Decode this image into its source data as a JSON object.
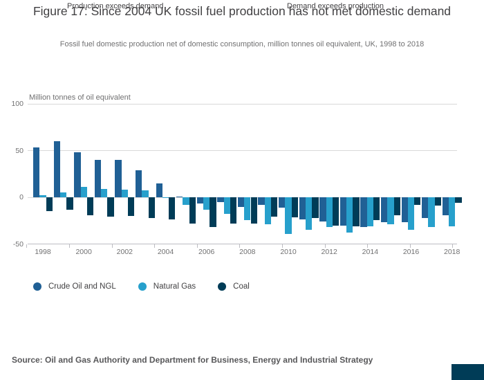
{
  "header": {
    "title": "Figure 17: Since 2004 UK fossil fuel production has not met domestic demand",
    "subtitle": "Fossil fuel domestic production net of domestic consumption, million tonnes oil equivalent, UK, 1998 to 2018"
  },
  "annotations": {
    "left": "Production exceeds demand",
    "right": "Demand exceeds production"
  },
  "footer": {
    "source": "Source: Oil and Gas Authority and Department for Business, Energy and Industrial Strategy"
  },
  "colors": {
    "crude_oil": "#206095",
    "natural_gas": "#27A0CC",
    "coal": "#003C57",
    "gridline": "#d9d9d9",
    "axis_text": "#707071",
    "title_text": "#414042",
    "corner_block": "#003C57"
  },
  "chart_data": {
    "type": "bar",
    "title": "Figure 17: Since 2004 UK fossil fuel production has not met domestic demand",
    "subtitle": "Fossil fuel domestic production net of domestic consumption, million tonnes oil equivalent, UK, 1998 to 2018",
    "ylabel": "Million tonnes of oil equivalent",
    "xlabel": "",
    "ylim": [
      -50,
      100
    ],
    "yticks": [
      100,
      50,
      0,
      -50
    ],
    "grid": "horizontal",
    "legend_position": "bottom",
    "categories": [
      1998,
      1999,
      2000,
      2001,
      2002,
      2003,
      2004,
      2005,
      2006,
      2007,
      2008,
      2009,
      2010,
      2011,
      2012,
      2013,
      2014,
      2015,
      2016,
      2017,
      2018
    ],
    "x_tick_labels": [
      "1998",
      "2000",
      "2002",
      "2004",
      "2006",
      "2008",
      "2010",
      "2012",
      "2014",
      "2016",
      "2018"
    ],
    "series": [
      {
        "name": "Crude Oil and NGL",
        "color": "#206095",
        "values": [
          53,
          60,
          48,
          40,
          40,
          29,
          15,
          1,
          -6.5,
          -5,
          -10,
          -8,
          -11,
          -23.5,
          -26,
          -30,
          -32,
          -26.5,
          -26.5,
          -22,
          -19
        ]
      },
      {
        "name": "Natural Gas",
        "color": "#27A0CC",
        "values": [
          2,
          5,
          11,
          9,
          8,
          7.5,
          -1,
          -8.5,
          -13.5,
          -18,
          -24.5,
          -29,
          -39,
          -35,
          -32,
          -38,
          -31,
          -29,
          -35,
          -32,
          -31
        ]
      },
      {
        "name": "Coal",
        "color": "#003C57",
        "values": [
          -15,
          -13,
          -19.5,
          -21,
          -20,
          -22.5,
          -23.5,
          -28.5,
          -32,
          -28.5,
          -28,
          -20.5,
          -21.5,
          -22,
          -30,
          -31,
          -24.5,
          -19.5,
          -8,
          -9,
          -6
        ]
      }
    ],
    "annotations": [
      "Production exceeds demand",
      "Demand exceeds production"
    ]
  }
}
